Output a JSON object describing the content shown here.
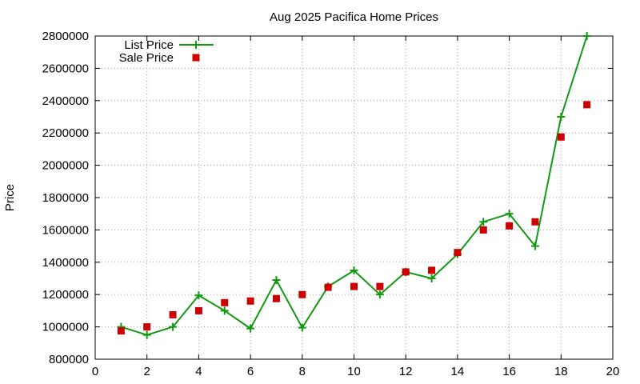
{
  "chart_data": {
    "type": "line",
    "title": "Aug 2025 Pacifica Home Prices",
    "xlabel": "",
    "ylabel": "Price",
    "xlim": [
      0,
      20
    ],
    "ylim": [
      800000,
      2800000
    ],
    "x_ticks": [
      0,
      2,
      4,
      6,
      8,
      10,
      12,
      14,
      16,
      18,
      20
    ],
    "y_ticks": [
      800000,
      1000000,
      1200000,
      1400000,
      1600000,
      1800000,
      2000000,
      2200000,
      2400000,
      2600000,
      2800000
    ],
    "grid": true,
    "legend_position": "top-left",
    "series": [
      {
        "name": "List Price",
        "style": "line-with-plus-markers",
        "color": "#119911",
        "x": [
          1,
          2,
          3,
          4,
          5,
          6,
          7,
          8,
          9,
          10,
          11,
          12,
          13,
          14,
          15,
          16,
          17,
          18,
          19
        ],
        "y": [
          1000000,
          950000,
          1000000,
          1195000,
          1100000,
          990000,
          1290000,
          995000,
          1250000,
          1349000,
          1200000,
          1340000,
          1300000,
          1450000,
          1650000,
          1700000,
          1500000,
          2300000,
          2800000
        ]
      },
      {
        "name": "Sale Price",
        "style": "square-markers",
        "color": "#cc0000",
        "x": [
          1,
          2,
          3,
          4,
          5,
          6,
          7,
          8,
          9,
          10,
          11,
          12,
          13,
          14,
          15,
          16,
          17,
          18,
          19
        ],
        "y": [
          975000,
          1000000,
          1075000,
          1100000,
          1150000,
          1160000,
          1175000,
          1200000,
          1245000,
          1250000,
          1250000,
          1340000,
          1350000,
          1460000,
          1600000,
          1625000,
          1650000,
          2175000,
          2375000
        ]
      }
    ]
  }
}
